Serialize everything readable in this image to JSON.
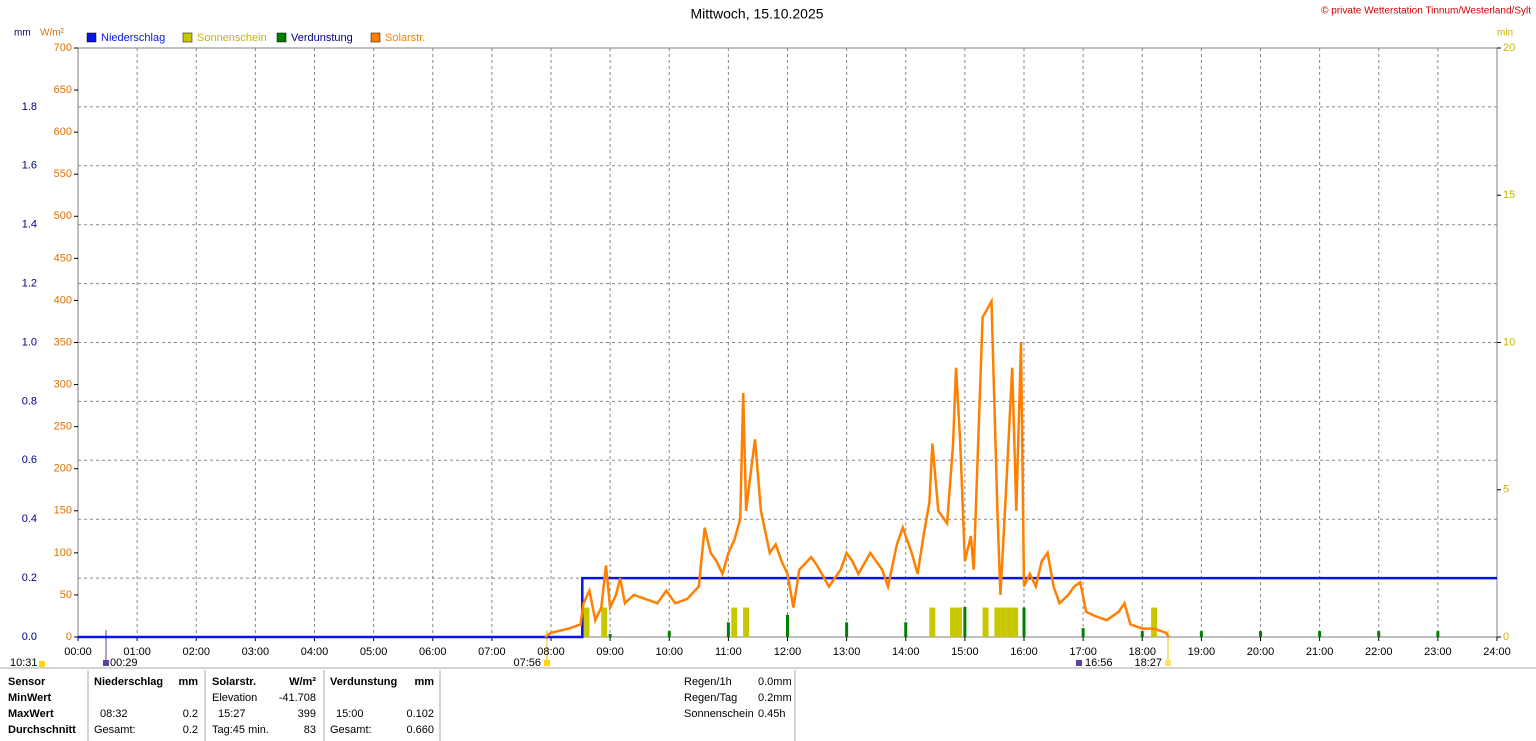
{
  "chart_data": {
    "type": "line",
    "title": "Mittwoch, 15.10.2025",
    "copyright": "© private Wetterstation Tinnum/Westerland/Sylt",
    "axis_labels": {
      "y": "mm",
      "y3": "W/m²",
      "y2": "min"
    },
    "xlim": [
      0,
      24
    ],
    "xticks": [
      {
        "value": 0,
        "label": "00:00"
      },
      {
        "value": 1,
        "label": "01:00"
      },
      {
        "value": 2,
        "label": "02:00"
      },
      {
        "value": 3,
        "label": "03:00"
      },
      {
        "value": 4,
        "label": "04:00"
      },
      {
        "value": 5,
        "label": "05:00"
      },
      {
        "value": 6,
        "label": "06:00"
      },
      {
        "value": 7,
        "label": "07:00"
      },
      {
        "value": 8,
        "label": "08:00"
      },
      {
        "value": 9,
        "label": "09:00"
      },
      {
        "value": 10,
        "label": "10:00"
      },
      {
        "value": 11,
        "label": "11:00"
      },
      {
        "value": 12,
        "label": "12:00"
      },
      {
        "value": 13,
        "label": "13:00"
      },
      {
        "value": 14,
        "label": "14:00"
      },
      {
        "value": 15,
        "label": "15:00"
      },
      {
        "value": 16,
        "label": "16:00"
      },
      {
        "value": 17,
        "label": "17:00"
      },
      {
        "value": 18,
        "label": "18:00"
      },
      {
        "value": 19,
        "label": "19:00"
      },
      {
        "value": 20,
        "label": "20:00"
      },
      {
        "value": 21,
        "label": "21:00"
      },
      {
        "value": 22,
        "label": "22:00"
      },
      {
        "value": 23,
        "label": "23:00"
      },
      {
        "value": 24,
        "label": "24:00"
      }
    ],
    "ylim": [
      0,
      2
    ],
    "yticks": [
      {
        "value": 0,
        "label": "0.0"
      },
      {
        "value": 0.2,
        "label": "0.2"
      },
      {
        "value": 0.4,
        "label": "0.4"
      },
      {
        "value": 0.6,
        "label": "0.6"
      },
      {
        "value": 0.8,
        "label": "0.8"
      },
      {
        "value": 1,
        "label": "1.0"
      },
      {
        "value": 1.2,
        "label": "1.2"
      },
      {
        "value": 1.4,
        "label": "1.4"
      },
      {
        "value": 1.6,
        "label": "1.6"
      },
      {
        "value": 1.8,
        "label": "1.8"
      }
    ],
    "y3lim": [
      0,
      700
    ],
    "y3ticks": [
      0,
      50,
      100,
      150,
      200,
      250,
      300,
      350,
      400,
      450,
      500,
      550,
      600,
      650,
      700
    ],
    "y2lim": [
      0,
      20
    ],
    "y2ticks": [
      0,
      5,
      10,
      15,
      20
    ],
    "grid": true,
    "series": [
      {
        "name": "Niederschlag",
        "color": "#0a14e6",
        "kind": "line",
        "axis": "y",
        "x": [
          0,
          8.53,
          8.53,
          24
        ],
        "values": [
          0,
          0,
          0.2,
          0.2
        ]
      },
      {
        "name": "Sonnenschein",
        "color": "#c8c800",
        "kind": "bar",
        "axis": "y2",
        "x": [
          8.6,
          8.9,
          11.1,
          11.3,
          14.45,
          14.8,
          14.9,
          15.35,
          15.55,
          15.65,
          15.75,
          15.85,
          18.2
        ],
        "values": [
          1,
          1,
          1,
          1,
          1,
          1,
          1,
          1,
          1,
          1,
          1,
          1,
          1
        ]
      },
      {
        "name": "Verdunstung",
        "color": "#008000",
        "kind": "bar",
        "axis": "y",
        "x": [
          9,
          10,
          11,
          12,
          13,
          14,
          15,
          16,
          17,
          18,
          19,
          20,
          21,
          22,
          23
        ],
        "values": [
          0.01,
          0.02,
          0.05,
          0.075,
          0.05,
          0.05,
          0.102,
          0.1,
          0.03,
          0.02,
          0.02,
          0.02,
          0.02,
          0.02,
          0.02
        ]
      },
      {
        "name": "Solarstr.",
        "color": "#ff8000",
        "kind": "line",
        "axis": "y3",
        "x": [
          7.9,
          8.0,
          8.3,
          8.5,
          8.55,
          8.65,
          8.75,
          8.85,
          8.93,
          9.0,
          9.1,
          9.17,
          9.25,
          9.4,
          9.6,
          9.8,
          9.95,
          10.1,
          10.3,
          10.5,
          10.6,
          10.7,
          10.8,
          10.9,
          11.0,
          11.1,
          11.2,
          11.25,
          11.3,
          11.35,
          11.45,
          11.55,
          11.7,
          11.8,
          11.9,
          12.0,
          12.1,
          12.2,
          12.4,
          12.5,
          12.7,
          12.9,
          13.0,
          13.1,
          13.2,
          13.4,
          13.6,
          13.7,
          13.85,
          13.95,
          14.1,
          14.2,
          14.3,
          14.4,
          14.45,
          14.55,
          14.7,
          14.8,
          14.85,
          14.92,
          15.0,
          15.1,
          15.15,
          15.3,
          15.45,
          15.55,
          15.6,
          15.7,
          15.8,
          15.87,
          15.95,
          16.0,
          16.1,
          16.2,
          16.3,
          16.4,
          16.5,
          16.6,
          16.75,
          16.85,
          16.95,
          17.05,
          17.2,
          17.4,
          17.6,
          17.7,
          17.8,
          18.0,
          18.2,
          18.4,
          18.45
        ],
        "values": [
          0,
          5,
          10,
          15,
          40,
          55,
          20,
          35,
          85,
          35,
          50,
          70,
          40,
          50,
          45,
          40,
          55,
          40,
          45,
          60,
          130,
          100,
          90,
          75,
          100,
          115,
          140,
          290,
          150,
          180,
          235,
          150,
          100,
          110,
          90,
          75,
          35,
          80,
          95,
          85,
          60,
          80,
          100,
          90,
          75,
          100,
          80,
          60,
          110,
          130,
          100,
          75,
          120,
          160,
          230,
          150,
          135,
          230,
          320,
          235,
          90,
          120,
          80,
          380,
          399,
          150,
          50,
          180,
          320,
          150,
          350,
          60,
          75,
          60,
          90,
          100,
          60,
          40,
          50,
          60,
          65,
          30,
          25,
          20,
          30,
          40,
          15,
          10,
          10,
          5,
          0
        ]
      }
    ],
    "events": [
      "10:31",
      "00:29",
      "07:56",
      "16:56",
      "18:27"
    ]
  },
  "stats": {
    "sensor": "Sensor",
    "rows": [
      "MinWert",
      "MaxWert",
      "Durchschnitt"
    ],
    "columns": [
      {
        "name": "Niederschlag",
        "unit": "mm",
        "max": [
          "08:32",
          "0.2"
        ],
        "avg": [
          "Gesamt:",
          "0.2"
        ]
      },
      {
        "name": "Solarstr.",
        "unit": "W/m²",
        "min": [
          "Elevation",
          "-41.708"
        ],
        "max": [
          "15:27",
          "399"
        ],
        "avg": [
          "Tag:45 min.",
          "83"
        ]
      },
      {
        "name": "Verdunstung",
        "unit": "mm",
        "max": [
          "15:00",
          "0.102"
        ],
        "avg": [
          "Gesamt:",
          "0.660"
        ]
      }
    ]
  },
  "summary": [
    [
      "Regen/1h",
      "0.0mm"
    ],
    [
      "Regen/Tag",
      "0.2mm"
    ],
    [
      "Sonnenschein",
      "0.45h"
    ]
  ]
}
